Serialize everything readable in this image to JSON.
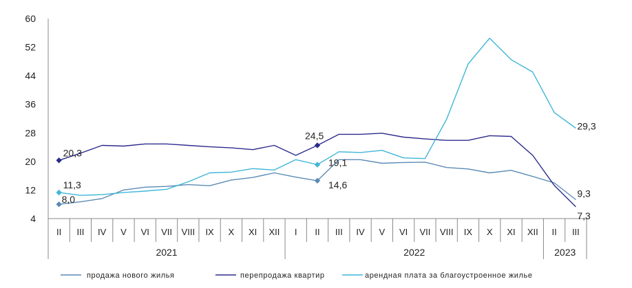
{
  "chart_data": {
    "type": "line",
    "ylim": [
      4,
      60
    ],
    "yticks": [
      4,
      12,
      20,
      28,
      36,
      44,
      52,
      60
    ],
    "grid": false,
    "legend_position": "bottom",
    "x": [
      "II",
      "III",
      "IV",
      "V",
      "VI",
      "VII",
      "VIII",
      "IX",
      "X",
      "XI",
      "XII",
      "I",
      "II",
      "III",
      "IV",
      "V",
      "VI",
      "VII",
      "VIII",
      "IX",
      "X",
      "XI",
      "XII",
      "II",
      "III"
    ],
    "years": [
      {
        "label": "2021",
        "from": 0,
        "to": 10
      },
      {
        "label": "2022",
        "from": 11,
        "to": 22
      },
      {
        "label": "2023",
        "from": 23,
        "to": 24
      }
    ],
    "series": [
      {
        "name": "продажа нового жилья",
        "color": "#5b8ab5",
        "values": [
          8.0,
          8.7,
          9.6,
          12.0,
          12.8,
          13.0,
          13.5,
          13.2,
          14.8,
          15.5,
          16.8,
          15.6,
          14.6,
          20.5,
          20.5,
          19.5,
          19.7,
          19.8,
          18.3,
          17.9,
          16.8,
          17.5,
          15.8,
          14.0,
          9.3
        ],
        "labels": [
          {
            "index": 0,
            "text": "8,0"
          },
          {
            "index": 12,
            "text": "14,6"
          },
          {
            "index": 24,
            "text": "9,3"
          }
        ],
        "markers": [
          0,
          12
        ]
      },
      {
        "name": "перепродажа квартир",
        "color": "#2b2b8c",
        "values": [
          20.3,
          22.3,
          24.5,
          24.3,
          24.9,
          24.9,
          24.5,
          24.1,
          23.8,
          23.3,
          24.5,
          21.7,
          24.5,
          27.6,
          27.6,
          27.9,
          26.8,
          26.3,
          25.9,
          25.9,
          27.2,
          27.0,
          21.7,
          13.3,
          7.3
        ],
        "labels": [
          {
            "index": 0,
            "text": "20,3"
          },
          {
            "index": 12,
            "text": "24,5"
          },
          {
            "index": 24,
            "text": "7,3"
          }
        ],
        "markers": [
          0,
          12
        ]
      },
      {
        "name": "арендная плата за благоустроенное жилье",
        "color": "#3fb6d8",
        "values": [
          11.3,
          10.5,
          10.7,
          11.3,
          11.7,
          12.2,
          14.3,
          16.8,
          17.0,
          18.0,
          17.6,
          20.5,
          19.1,
          22.7,
          22.5,
          23.1,
          21.0,
          20.8,
          31.8,
          47.3,
          54.5,
          48.5,
          45.0,
          33.7,
          29.3
        ],
        "labels": [
          {
            "index": 0,
            "text": "11,3"
          },
          {
            "index": 12,
            "text": "19,1"
          },
          {
            "index": 24,
            "text": "29,3"
          }
        ],
        "markers": [
          0,
          12
        ]
      }
    ]
  }
}
